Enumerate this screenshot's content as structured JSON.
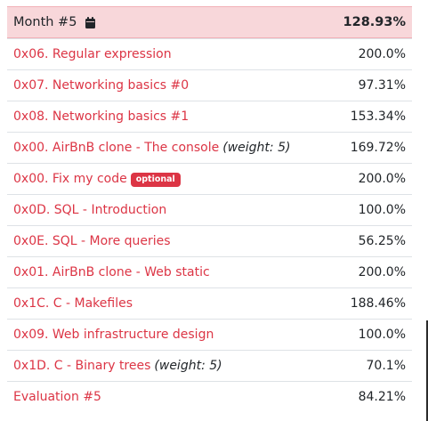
{
  "header": {
    "title": "Month #5",
    "icon": "calendar-icon",
    "score": "128.93%",
    "bg_color": "#f8d7da"
  },
  "link_color": "#dc3545",
  "rows": [
    {
      "name": "0x06. Regular expression",
      "weight": "",
      "badge": "",
      "score": "200.0%"
    },
    {
      "name": "0x07. Networking basics #0",
      "weight": "",
      "badge": "",
      "score": "97.31%"
    },
    {
      "name": "0x08. Networking basics #1",
      "weight": "",
      "badge": "",
      "score": "153.34%"
    },
    {
      "name": "0x00. AirBnB clone - The console",
      "weight": "(weight: 5)",
      "badge": "",
      "score": "169.72%"
    },
    {
      "name": "0x00. Fix my code",
      "weight": "",
      "badge": "optional",
      "score": "200.0%"
    },
    {
      "name": "0x0D. SQL - Introduction",
      "weight": "",
      "badge": "",
      "score": "100.0%"
    },
    {
      "name": "0x0E. SQL - More queries",
      "weight": "",
      "badge": "",
      "score": "56.25%"
    },
    {
      "name": "0x01. AirBnB clone - Web static",
      "weight": "",
      "badge": "",
      "score": "200.0%"
    },
    {
      "name": "0x1C. C - Makefiles",
      "weight": "",
      "badge": "",
      "score": "188.46%"
    },
    {
      "name": "0x09. Web infrastructure design",
      "weight": "",
      "badge": "",
      "score": "100.0%"
    },
    {
      "name": "0x1D. C - Binary trees",
      "weight": "(weight: 5)",
      "badge": "",
      "score": "70.1%"
    },
    {
      "name": "Evaluation #5",
      "weight": "",
      "badge": "",
      "score": "84.21%"
    }
  ]
}
